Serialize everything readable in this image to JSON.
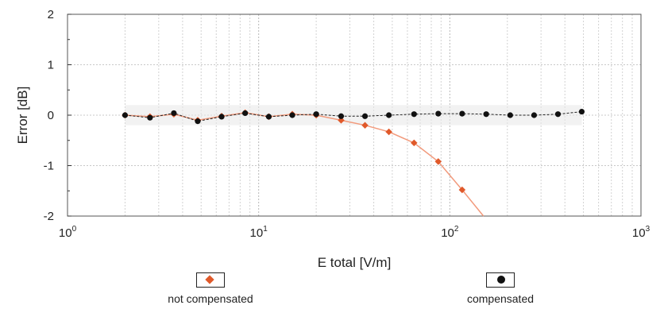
{
  "chart_data": {
    "type": "scatter",
    "xscale": "log",
    "xlim": [
      1,
      1000
    ],
    "ylim": [
      -2,
      2
    ],
    "xlabel": "E total [V/m]",
    "ylabel": "Error [dB]",
    "x_tick_labels": [
      {
        "base": "10",
        "exp": "0"
      },
      {
        "base": "10",
        "exp": "1"
      },
      {
        "base": "10",
        "exp": "2"
      },
      {
        "base": "10",
        "exp": "3"
      }
    ],
    "y_tick_labels": [
      "2",
      "1",
      "0",
      "-1",
      "-2"
    ],
    "grid": true,
    "legend_position": "bottom",
    "series": [
      {
        "name": "not compensated",
        "color": "#e0592a",
        "marker": "diamond",
        "x": [
          2,
          2.7,
          3.6,
          4.8,
          6.4,
          8.5,
          11.3,
          15,
          20,
          27,
          36,
          48,
          65,
          87,
          116
        ],
        "y": [
          0.0,
          -0.03,
          0.02,
          -0.1,
          -0.02,
          0.05,
          -0.03,
          0.02,
          0.0,
          -0.1,
          -0.2,
          -0.33,
          -0.55,
          -0.92,
          -1.48
        ],
        "curve_end": [
          150,
          -2.0
        ]
      },
      {
        "name": "compensated",
        "color": "#111111",
        "marker": "circle",
        "x": [
          2,
          2.7,
          3.6,
          4.8,
          6.4,
          8.5,
          11.3,
          15,
          20,
          27,
          36,
          48,
          65,
          87,
          116,
          155,
          207,
          276,
          368,
          490
        ],
        "y": [
          0.0,
          -0.05,
          0.04,
          -0.12,
          -0.03,
          0.04,
          -0.03,
          0.0,
          0.02,
          -0.02,
          -0.02,
          0.0,
          0.02,
          0.03,
          0.03,
          0.02,
          0.0,
          0.0,
          0.02,
          0.07
        ]
      }
    ]
  }
}
